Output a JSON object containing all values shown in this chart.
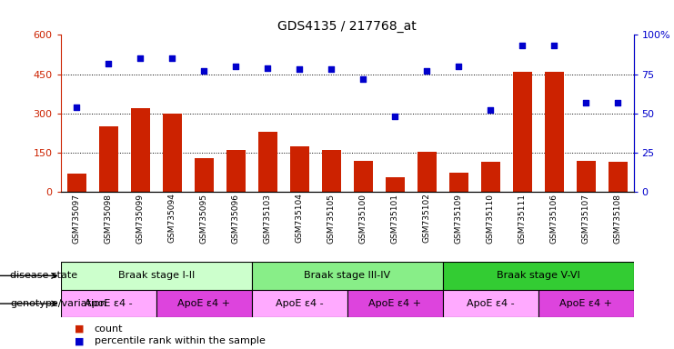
{
  "title": "GDS4135 / 217768_at",
  "samples": [
    "GSM735097",
    "GSM735098",
    "GSM735099",
    "GSM735094",
    "GSM735095",
    "GSM735096",
    "GSM735103",
    "GSM735104",
    "GSM735105",
    "GSM735100",
    "GSM735101",
    "GSM735102",
    "GSM735109",
    "GSM735110",
    "GSM735111",
    "GSM735106",
    "GSM735107",
    "GSM735108"
  ],
  "counts": [
    70,
    250,
    320,
    300,
    130,
    160,
    230,
    175,
    160,
    120,
    55,
    155,
    75,
    115,
    460,
    460,
    120,
    115
  ],
  "percentiles": [
    54,
    82,
    85,
    85,
    77,
    80,
    79,
    78,
    78,
    72,
    48,
    77,
    80,
    52,
    93,
    93,
    57,
    57
  ],
  "ylim_left": [
    0,
    600
  ],
  "ylim_right": [
    0,
    100
  ],
  "yticks_left": [
    0,
    150,
    300,
    450,
    600
  ],
  "yticks_right": [
    0,
    25,
    50,
    75,
    100
  ],
  "bar_color": "#CC2200",
  "dot_color": "#0000CC",
  "disease_groups": [
    {
      "label": "Braak stage I-II",
      "start": 0,
      "end": 6,
      "color": "#CCFFCC"
    },
    {
      "label": "Braak stage III-IV",
      "start": 6,
      "end": 12,
      "color": "#88EE88"
    },
    {
      "label": "Braak stage V-VI",
      "start": 12,
      "end": 18,
      "color": "#33CC33"
    }
  ],
  "genotype_groups": [
    {
      "label": "ApoE ε4 -",
      "start": 0,
      "end": 3,
      "color": "#FFAAFF"
    },
    {
      "label": "ApoE ε4 +",
      "start": 3,
      "end": 6,
      "color": "#DD44DD"
    },
    {
      "label": "ApoE ε4 -",
      "start": 6,
      "end": 9,
      "color": "#FFAAFF"
    },
    {
      "label": "ApoE ε4 +",
      "start": 9,
      "end": 12,
      "color": "#DD44DD"
    },
    {
      "label": "ApoE ε4 -",
      "start": 12,
      "end": 15,
      "color": "#FFAAFF"
    },
    {
      "label": "ApoE ε4 +",
      "start": 15,
      "end": 18,
      "color": "#DD44DD"
    }
  ],
  "legend_count_label": "count",
  "legend_pct_label": "percentile rank within the sample",
  "left_label_disease": "disease state",
  "left_label_genotype": "genotype/variation"
}
